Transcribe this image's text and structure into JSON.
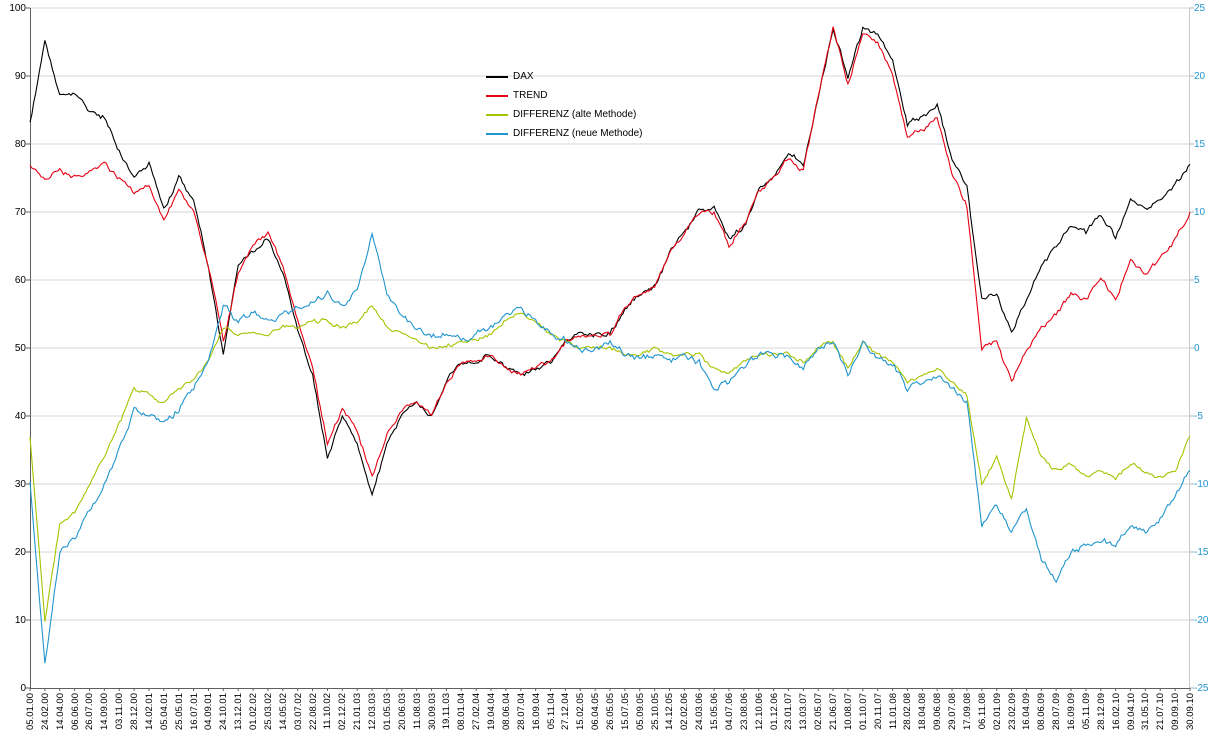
{
  "chart_data": {
    "type": "line",
    "title": "",
    "grid": true,
    "legend_position": "top-center-left",
    "legend": [
      {
        "label": "DAX",
        "color": "#000000",
        "axis": "left"
      },
      {
        "label": "TREND",
        "color": "#e60012",
        "axis": "left"
      },
      {
        "label": "DIFFERENZ (alte Methode)",
        "color": "#a4c400",
        "axis": "right"
      },
      {
        "label": "DIFFERENZ (neue Methode)",
        "color": "#2095cd",
        "axis": "right"
      }
    ],
    "left_axis": {
      "min": 0,
      "max": 100,
      "step": 10,
      "color": "#000000",
      "ticks": [
        "100",
        "90",
        "80",
        "70",
        "60",
        "50",
        "40",
        "30",
        "20",
        "10",
        "0"
      ]
    },
    "right_axis": {
      "min": -25,
      "max": 25,
      "step": 5,
      "color": "#2095cd",
      "ticks": [
        "25",
        "20",
        "15",
        "10",
        "5",
        "0",
        "-5",
        "-10",
        "-15",
        "-20",
        "-25"
      ]
    },
    "x_labels": [
      "05.01.00",
      "24.02.00",
      "14.04.00",
      "06.06.00",
      "26.07.00",
      "14.09.00",
      "03.11.00",
      "28.12.00",
      "14.02.01",
      "05.04.01",
      "25.05.01",
      "16.07.01",
      "04.09.01",
      "24.10.01",
      "13.12.01",
      "01.02.02",
      "25.03.02",
      "14.05.02",
      "03.07.02",
      "22.08.02",
      "11.10.02",
      "02.12.02",
      "21.01.03",
      "12.03.03",
      "01.05.03",
      "20.06.03",
      "11.08.03",
      "30.09.03",
      "19.11.03",
      "08.01.04",
      "27.02.04",
      "19.04.04",
      "08.06.04",
      "28.07.04",
      "16.09.04",
      "05.11.04",
      "27.12.04",
      "15.02.05",
      "06.04.05",
      "26.05.05",
      "15.07.05",
      "05.09.05",
      "25.10.05",
      "14.12.05",
      "02.02.06",
      "24.03.06",
      "15.05.06",
      "04.07.06",
      "23.08.06",
      "12.10.06",
      "01.12.06",
      "23.01.07",
      "13.03.07",
      "02.05.07",
      "21.06.07",
      "10.08.07",
      "01.10.07",
      "20.11.07",
      "11.01.08",
      "28.02.08",
      "18.04.08",
      "09.06.08",
      "29.07.08",
      "17.09.08",
      "06.11.08",
      "02.01.09",
      "23.02.09",
      "16.04.09",
      "08.06.09",
      "28.07.09",
      "16.09.09",
      "05.11.09",
      "28.12.09",
      "16.02.10",
      "09.04.10",
      "31.05.10",
      "21.07.10",
      "09.09.10",
      "30.09.10"
    ],
    "series": [
      {
        "name": "DAX",
        "axis": "left",
        "color": "#000000",
        "values": [
          83,
          95,
          87,
          87,
          85,
          84,
          79,
          75,
          77,
          70,
          75,
          72,
          62,
          49,
          62,
          64,
          66,
          61,
          53,
          46,
          34,
          40,
          36,
          28,
          36,
          40,
          42,
          40,
          45,
          48,
          48,
          49,
          47,
          46,
          47,
          48,
          51,
          52,
          52,
          52,
          56,
          58,
          59,
          64,
          67,
          70,
          71,
          66,
          68,
          73,
          75,
          79,
          77,
          87,
          97,
          90,
          97,
          96,
          92,
          83,
          84,
          86,
          78,
          74,
          57,
          58,
          52,
          57,
          62,
          65,
          68,
          67,
          70,
          66,
          72,
          70,
          72,
          74,
          77
        ]
      },
      {
        "name": "TREND",
        "axis": "left",
        "color": "#e60012",
        "values": [
          77,
          75,
          76,
          75,
          76,
          77,
          75,
          73,
          74,
          69,
          73,
          70,
          62,
          51,
          61,
          65,
          67,
          62,
          54,
          47,
          36,
          41,
          38,
          31,
          37,
          41,
          42,
          40,
          45,
          48,
          48,
          49,
          47,
          46,
          47,
          48,
          51,
          52,
          52,
          52,
          56,
          58,
          59,
          64,
          67,
          70,
          70,
          65,
          68,
          73,
          75,
          78,
          76,
          87,
          97,
          89,
          96,
          95,
          90,
          81,
          82,
          84,
          76,
          71,
          50,
          51,
          45,
          50,
          53,
          55,
          58,
          57,
          60,
          57,
          63,
          61,
          63,
          66,
          70
        ]
      },
      {
        "name": "DIFFERENZ (alte Methode)",
        "axis": "right",
        "color": "#a4c400",
        "values": [
          -6.5,
          -20,
          -13,
          -12,
          -10,
          -8,
          -5.5,
          -3,
          -3.5,
          -4,
          -3,
          -2.5,
          -1,
          1.5,
          1,
          1,
          1,
          1.5,
          1.5,
          2,
          2,
          1.5,
          2,
          3,
          1.5,
          1,
          0.5,
          0,
          0,
          0.5,
          0.5,
          1,
          2,
          2.5,
          2,
          1,
          0.5,
          0,
          0,
          0,
          -0.5,
          -0.5,
          0,
          -0.5,
          -0.5,
          -0.5,
          -1.5,
          -2,
          -1,
          -0.5,
          -0.5,
          -0.5,
          -1,
          0,
          0.5,
          -1.5,
          0.5,
          -0.5,
          -1,
          -2.5,
          -2,
          -1.5,
          -2.5,
          -3.5,
          -10,
          -8,
          -11,
          -5,
          -8,
          -9,
          -8.5,
          -9.5,
          -9,
          -9.5,
          -8.5,
          -9,
          -9.5,
          -9,
          -6.5
        ]
      },
      {
        "name": "DIFFERENZ (neue Methode)",
        "axis": "right",
        "color": "#2095cd",
        "values": [
          -10,
          -23,
          -15,
          -14,
          -12,
          -10,
          -7.5,
          -4.5,
          -5,
          -5.5,
          -4.5,
          -3,
          -1,
          3,
          2,
          2.5,
          2,
          2.5,
          3,
          3.5,
          4,
          3,
          4.5,
          8.5,
          4,
          2.5,
          1.5,
          1,
          1,
          0.5,
          1,
          1.5,
          2.5,
          3,
          2,
          1,
          0.5,
          0,
          0,
          0.5,
          -0.5,
          -1,
          -0.5,
          -1,
          -0.5,
          -1,
          -3,
          -2.5,
          -1.5,
          -0.5,
          -0.5,
          -0.5,
          -1.5,
          0,
          0.5,
          -2,
          0.5,
          -1,
          -1,
          -3,
          -2.5,
          -2,
          -3,
          -4,
          -13,
          -11.5,
          -13.5,
          -12,
          -15.5,
          -17,
          -15,
          -14.5,
          -14,
          -14.5,
          -13,
          -13.5,
          -12.5,
          -11,
          -9
        ]
      }
    ]
  }
}
